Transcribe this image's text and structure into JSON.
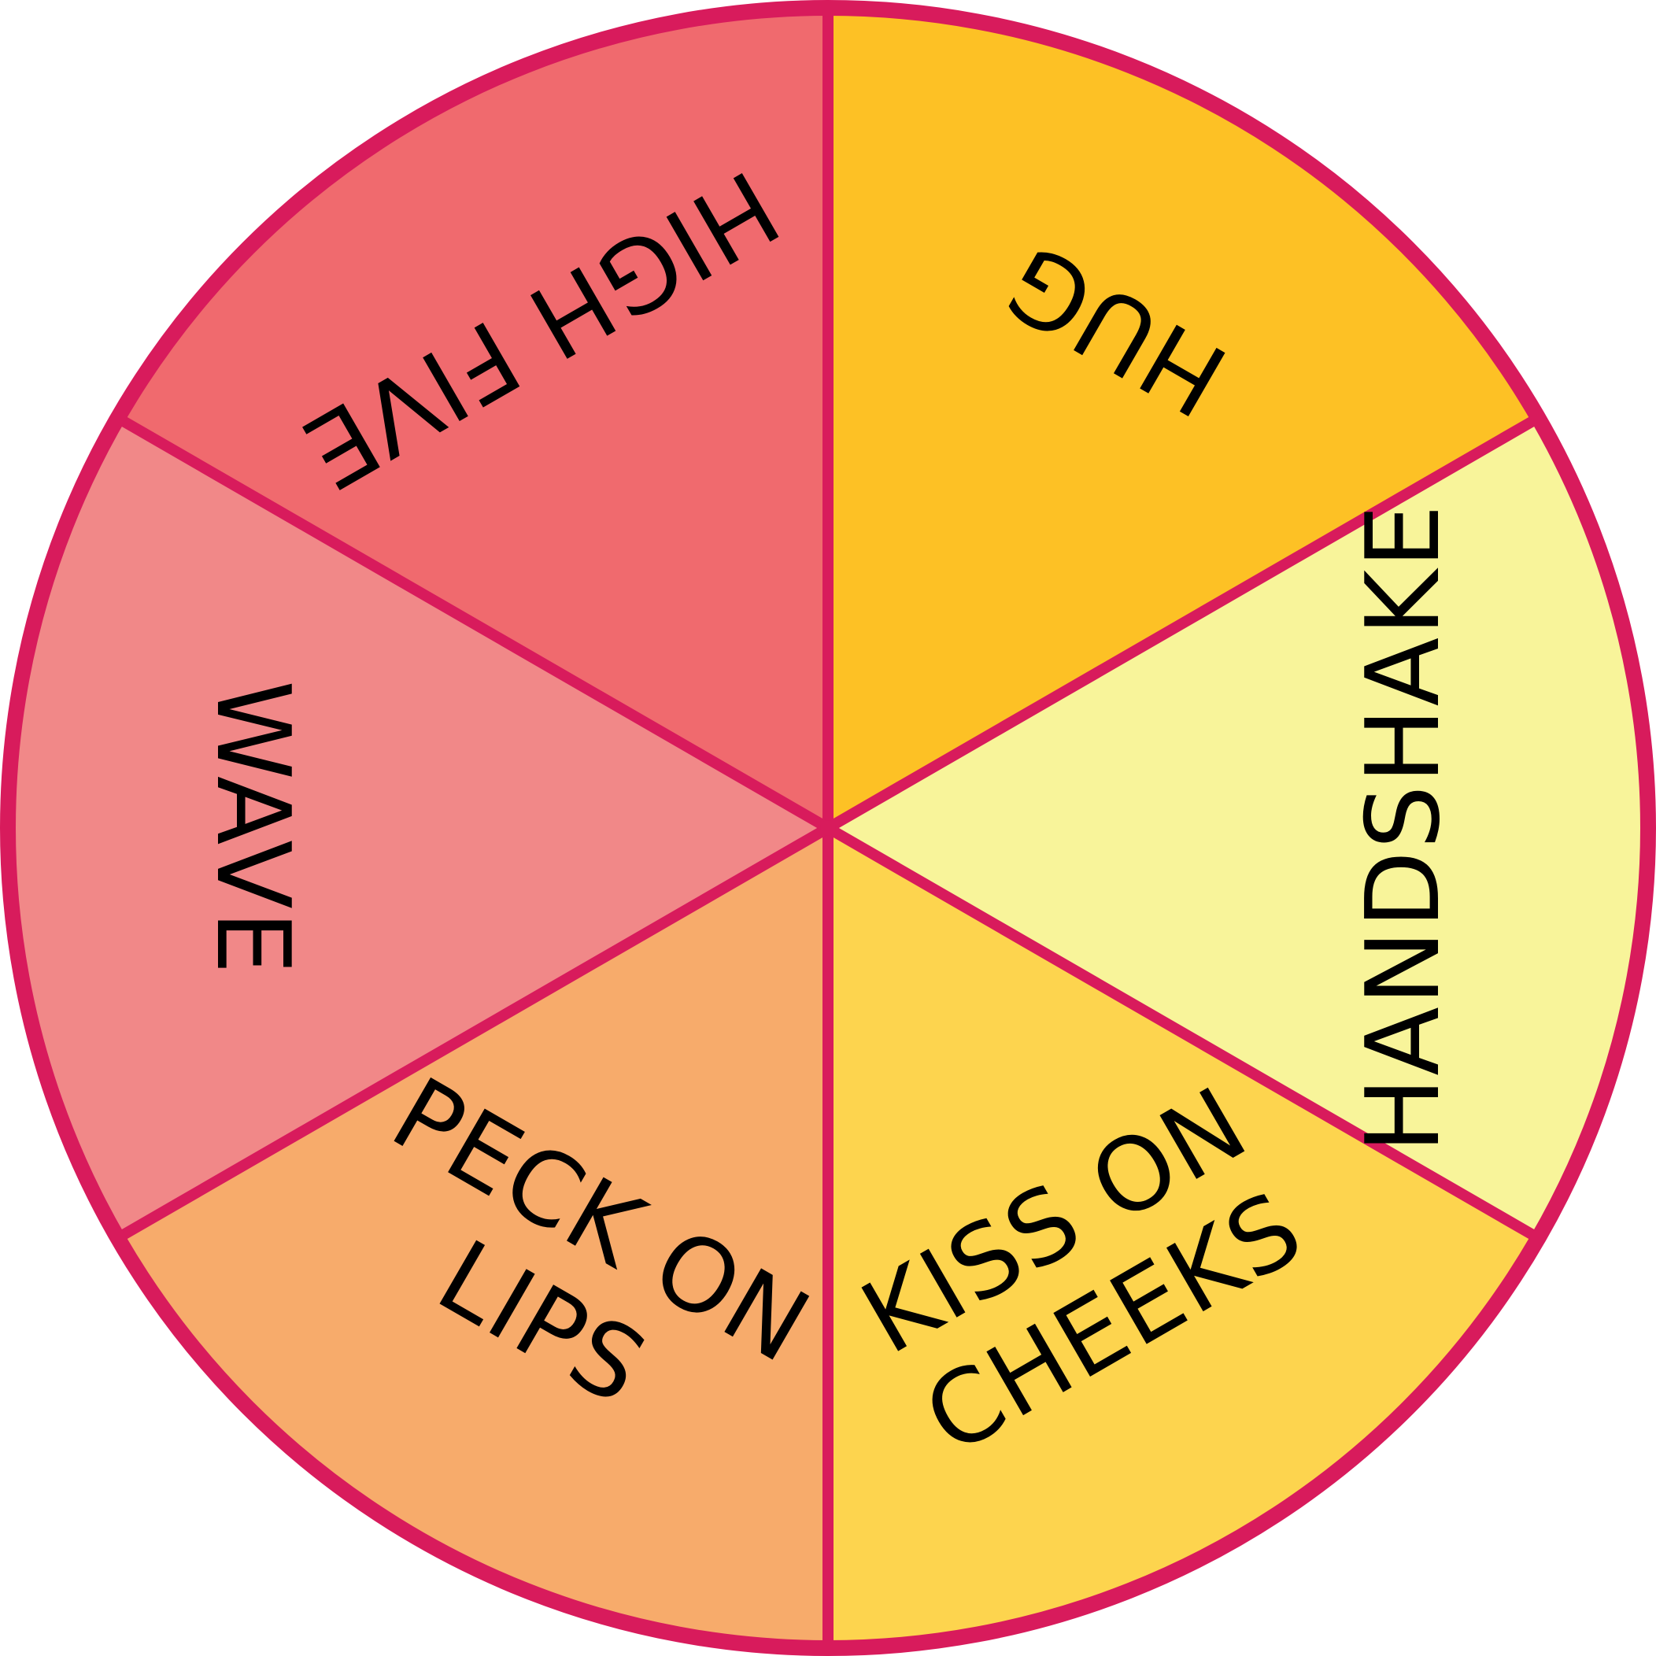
{
  "wheel": {
    "rim_color": "#d81b5c",
    "segments": [
      {
        "id": "hug",
        "lines": [
          "HUG"
        ],
        "color": "#fdc125"
      },
      {
        "id": "handshake",
        "lines": [
          "HANDSHAKE"
        ],
        "color": "#f8f49a"
      },
      {
        "id": "kiss-on-cheeks",
        "lines": [
          "KISS ON",
          "CHEEKS"
        ],
        "color": "#fdd44e"
      },
      {
        "id": "peck-on-lips",
        "lines": [
          "PECK ON",
          "LIPS"
        ],
        "color": "#f7ab6b"
      },
      {
        "id": "wave",
        "lines": [
          "WAVE"
        ],
        "color": "#f18888"
      },
      {
        "id": "high-five",
        "lines": [
          "HIGH FIVE"
        ],
        "color": "#f06a6e"
      }
    ]
  }
}
